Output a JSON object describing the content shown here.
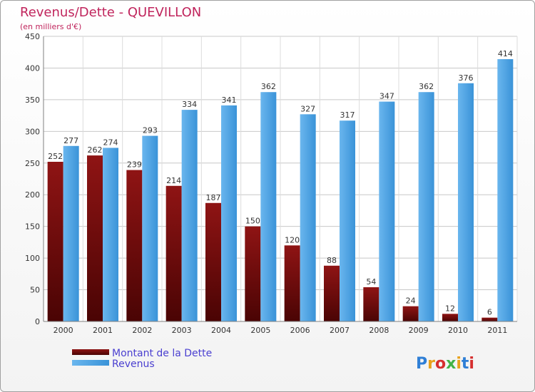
{
  "chart_data": {
    "type": "bar",
    "title": "Revenus/Dette - QUEVILLON",
    "subtitle": "(en milliers d'€)",
    "categories": [
      "2000",
      "2001",
      "2002",
      "2003",
      "2004",
      "2005",
      "2006",
      "2007",
      "2008",
      "2009",
      "2010",
      "2011"
    ],
    "series": [
      {
        "name": "Montant de la Dette",
        "color": "#7a0a0a",
        "values": [
          252,
          262,
          239,
          214,
          187,
          150,
          120,
          88,
          54,
          24,
          12,
          6
        ]
      },
      {
        "name": "Revenus",
        "color": "#4ea6e8",
        "values": [
          277,
          274,
          293,
          334,
          341,
          362,
          327,
          317,
          347,
          362,
          376,
          414
        ]
      }
    ],
    "ylim": [
      0,
      450
    ],
    "yticks": [
      0,
      50,
      100,
      150,
      200,
      250,
      300,
      350,
      400,
      450
    ],
    "grid": true,
    "legend": "bottom-left"
  },
  "brand": {
    "letters": [
      {
        "char": "P",
        "color": "#2f7fd6"
      },
      {
        "char": "r",
        "color": "#e8a21c"
      },
      {
        "char": "o",
        "color": "#d62f2f"
      },
      {
        "char": "x",
        "color": "#42b346"
      },
      {
        "char": "i",
        "color": "#e8a21c"
      },
      {
        "char": "t",
        "color": "#2f7fd6"
      },
      {
        "char": "i",
        "color": "#d62f2f"
      }
    ]
  }
}
